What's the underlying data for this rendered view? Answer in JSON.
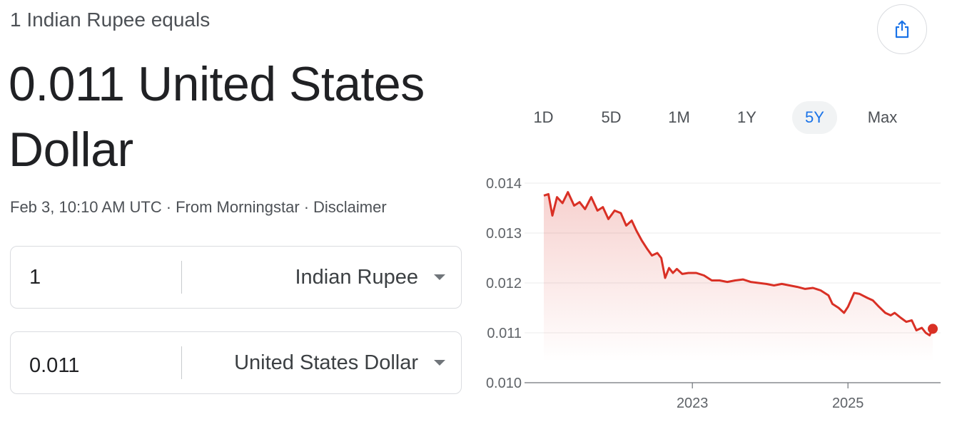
{
  "header": {
    "subtitle": "1 Indian Rupee equals",
    "result": "0.011 United States Dollar"
  },
  "meta": {
    "timestamp": "Feb 3, 10:10 AM UTC",
    "source": "From Morningstar",
    "disclaimer": "Disclaimer",
    "separator": "·"
  },
  "converter": {
    "from": {
      "value": "1",
      "currency": "Indian Rupee"
    },
    "to": {
      "value": "0.011",
      "currency": "United States Dollar"
    }
  },
  "share": {
    "icon": "share-icon"
  },
  "ranges": {
    "options": [
      "1D",
      "5D",
      "1M",
      "1Y",
      "5Y",
      "Max"
    ],
    "selected": "5Y"
  },
  "colors": {
    "line": "#d93025",
    "accent": "#1a73e8",
    "border": "#dadce0"
  },
  "chart_data": {
    "type": "area",
    "x_ticks": [
      "2023",
      "2025"
    ],
    "y_ticks": [
      "0.014",
      "0.013",
      "0.012",
      "0.011",
      "0.010"
    ],
    "ylim": [
      0.01,
      0.014
    ],
    "xlim": [
      2021.09,
      2026.09
    ],
    "grid": true,
    "series": [
      {
        "x": [
          2021.09,
          2021.15,
          2021.2,
          2021.26,
          2021.33,
          2021.4,
          2021.48,
          2021.55,
          2021.62,
          2021.7,
          2021.78,
          2021.85,
          2021.92,
          2022.0,
          2022.08,
          2022.15,
          2022.22,
          2022.28,
          2022.35,
          2022.42,
          2022.48,
          2022.55,
          2022.6,
          2022.65,
          2022.7,
          2022.75,
          2022.8,
          2022.87,
          2022.95,
          2023.05,
          2023.15,
          2023.25,
          2023.35,
          2023.45,
          2023.55,
          2023.65,
          2023.75,
          2023.85,
          2023.95,
          2024.05,
          2024.15,
          2024.25,
          2024.35,
          2024.45,
          2024.55,
          2024.65,
          2024.75,
          2024.8,
          2024.88,
          2024.95,
          2025.0,
          2025.08,
          2025.15,
          2025.25,
          2025.32,
          2025.4,
          2025.48,
          2025.55,
          2025.6,
          2025.68,
          2025.75,
          2025.82,
          2025.88,
          2025.95,
          2026.0,
          2026.05,
          2026.09
        ],
        "y": [
          0.01375,
          0.01378,
          0.01335,
          0.01372,
          0.0136,
          0.01382,
          0.01355,
          0.01362,
          0.01348,
          0.01372,
          0.01345,
          0.01352,
          0.01328,
          0.01345,
          0.0134,
          0.01315,
          0.01325,
          0.01305,
          0.01285,
          0.01268,
          0.01255,
          0.0126,
          0.0125,
          0.0121,
          0.0123,
          0.0122,
          0.01228,
          0.01218,
          0.0122,
          0.0122,
          0.01215,
          0.01205,
          0.01205,
          0.01202,
          0.01205,
          0.01207,
          0.01202,
          0.012,
          0.01198,
          0.01195,
          0.01198,
          0.01195,
          0.01192,
          0.01188,
          0.0119,
          0.01185,
          0.01175,
          0.01158,
          0.0115,
          0.0114,
          0.01152,
          0.0118,
          0.01178,
          0.0117,
          0.01165,
          0.01152,
          0.0114,
          0.01135,
          0.0114,
          0.0113,
          0.01122,
          0.01125,
          0.01105,
          0.0111,
          0.011,
          0.01095,
          0.01108
        ]
      }
    ]
  }
}
